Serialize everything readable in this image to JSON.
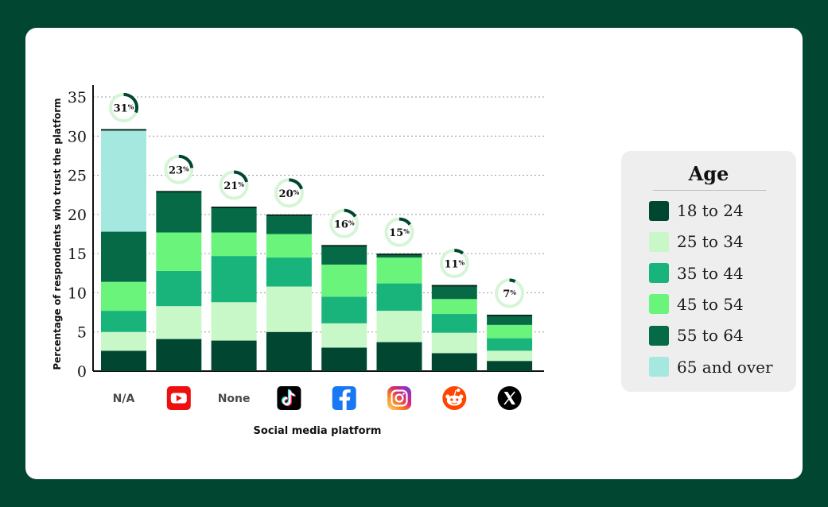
{
  "chart_data": {
    "type": "bar",
    "stacked": true,
    "ylabel": "Percentage of respondents who trust the platform",
    "xlabel": "Social media platform",
    "ylim": [
      0,
      35
    ],
    "yticks": [
      0,
      5,
      10,
      15,
      20,
      25,
      30,
      35
    ],
    "grid": "horizontal dotted",
    "legend_position": "right",
    "categories": [
      {
        "label": "N/A",
        "icon": null
      },
      {
        "label": "",
        "icon": "youtube-icon"
      },
      {
        "label": "None",
        "icon": null
      },
      {
        "label": "",
        "icon": "tiktok-icon"
      },
      {
        "label": "",
        "icon": "facebook-icon"
      },
      {
        "label": "",
        "icon": "instagram-icon"
      },
      {
        "label": "",
        "icon": "reddit-icon"
      },
      {
        "label": "",
        "icon": "x-icon"
      }
    ],
    "totals": [
      {
        "value": 31,
        "label": "31"
      },
      {
        "value": 23,
        "label": "23"
      },
      {
        "value": 21,
        "label": "21"
      },
      {
        "value": 20,
        "label": "20"
      },
      {
        "value": 16,
        "label": "16"
      },
      {
        "value": 15,
        "label": "15"
      },
      {
        "value": 11,
        "label": "11"
      },
      {
        "value": 7,
        "label": "7"
      }
    ],
    "total_suffix": "%",
    "series": [
      {
        "name": "18 to 24",
        "color": "#014631",
        "values": [
          2.6,
          4.1,
          3.9,
          5.0,
          3.0,
          3.7,
          2.3,
          1.3
        ]
      },
      {
        "name": "25 to 34",
        "color": "#c8f8c8",
        "values": [
          2.4,
          4.2,
          4.9,
          5.8,
          3.1,
          4.0,
          2.6,
          1.3
        ]
      },
      {
        "name": "35 to 44",
        "color": "#19b47b",
        "values": [
          2.7,
          4.5,
          5.9,
          3.7,
          3.4,
          3.5,
          2.4,
          1.6
        ]
      },
      {
        "name": "45 to 54",
        "color": "#6af47b",
        "values": [
          3.7,
          4.9,
          3.0,
          3.0,
          4.1,
          3.3,
          1.9,
          1.7
        ]
      },
      {
        "name": "55 to 64",
        "color": "#066a46",
        "values": [
          6.4,
          5.2,
          3.2,
          2.4,
          2.4,
          0.4,
          1.7,
          1.2
        ]
      },
      {
        "name": "65 and over",
        "color": "#a5e8e0",
        "values": [
          13.0,
          0,
          0,
          0,
          0,
          0,
          0,
          0
        ]
      }
    ]
  },
  "legend": {
    "title": "Age",
    "items": [
      {
        "label": "18 to 24",
        "color": "#014631"
      },
      {
        "label": "25 to 34",
        "color": "#c8f8c8"
      },
      {
        "label": "35 to 44",
        "color": "#19b47b"
      },
      {
        "label": "45 to 54",
        "color": "#6af47b"
      },
      {
        "label": "55 to 64",
        "color": "#066a46"
      },
      {
        "label": "65 and over",
        "color": "#a5e8e0"
      }
    ]
  },
  "colors": {
    "frame": "#014631",
    "card": "#ffffff",
    "legend_bg": "#eeeeee",
    "ring_track": "#d6f5d6",
    "ring_fill": "#014631"
  }
}
